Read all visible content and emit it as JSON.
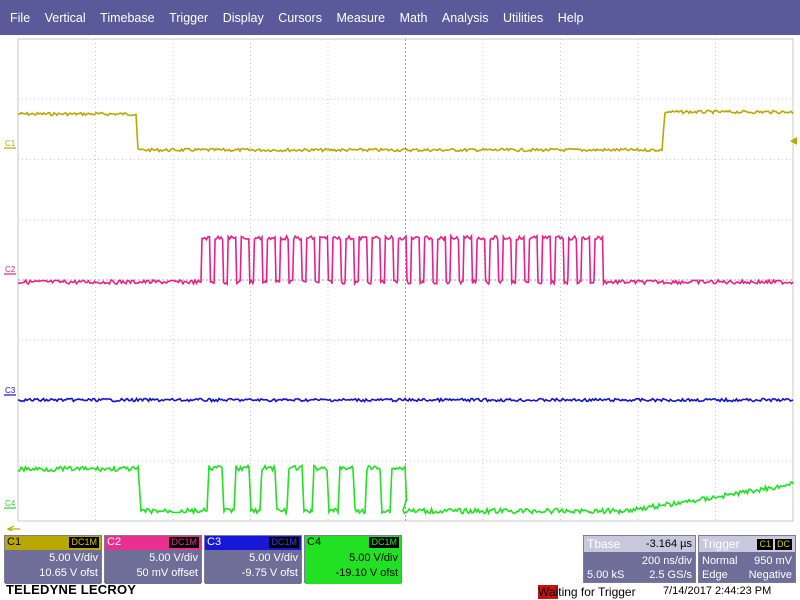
{
  "menu": {
    "items": [
      "File",
      "Vertical",
      "Timebase",
      "Trigger",
      "Display",
      "Cursors",
      "Measure",
      "Math",
      "Analysis",
      "Utilities",
      "Help"
    ]
  },
  "traces": {
    "c1": {
      "label": "C1",
      "color": "#b8a800"
    },
    "c2": {
      "label": "C2",
      "color": "#e8208a"
    },
    "c3": {
      "label": "C3",
      "color": "#1414d0"
    },
    "c4": {
      "label": "C4",
      "color": "#22e022"
    }
  },
  "channels": [
    {
      "id": "c1",
      "name": "C1",
      "coupling": "DC1M",
      "vdiv": "5.00 V/div",
      "offset": "10.65 V ofst"
    },
    {
      "id": "c2",
      "name": "C2",
      "coupling": "DC1M",
      "vdiv": "5.00 V/div",
      "offset": "50 mV offset"
    },
    {
      "id": "c3",
      "name": "C3",
      "coupling": "DC1M",
      "vdiv": "5.00 V/div",
      "offset": "-9.75 V ofst"
    },
    {
      "id": "c4",
      "name": "C4",
      "coupling": "DC1M",
      "vdiv": "5.00 V/div",
      "offset": "-19.10 V ofst"
    }
  ],
  "timebase": {
    "label": "Tbase",
    "delay": "-3.164 µs",
    "tdiv": "200 ns/div",
    "samples": "5.00 kS",
    "rate": "2.5 GS/s"
  },
  "trigger": {
    "label": "Trigger",
    "source": "C1",
    "coupling": "DC",
    "mode": "Normal",
    "level": "950 mV",
    "type": "Edge",
    "slope": "Negative"
  },
  "brand": "TELEDYNE LECROY",
  "status": {
    "hl": "Wai",
    "rest": "ting for Trigger"
  },
  "datetime": "7/14/2017 2:44:23 PM"
}
